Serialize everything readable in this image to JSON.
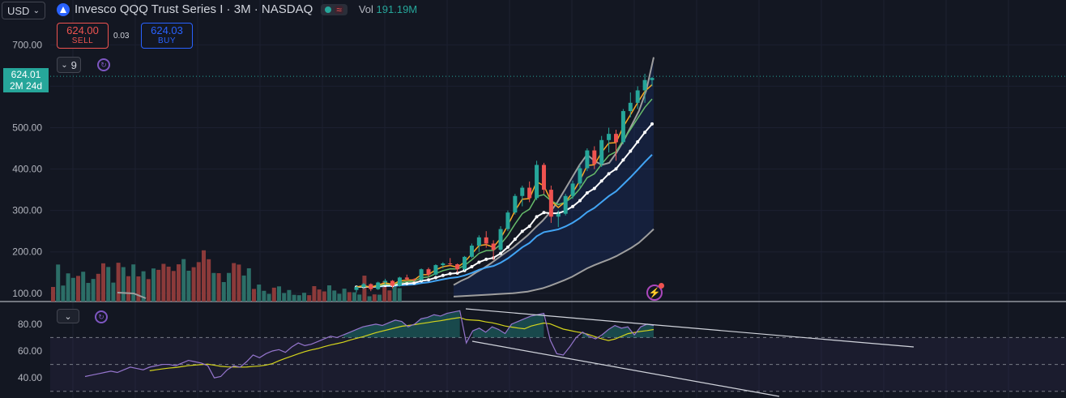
{
  "header": {
    "currency": "USD",
    "symbol_title": "Invesco QQQ Trust Series I · 3M · NASDAQ",
    "volume_label": "Vol",
    "volume_value": "191.19M",
    "status_icon": "market-open-dot",
    "wave_icon": "≈"
  },
  "trade": {
    "sell_price": "624.00",
    "sell_label": "SELL",
    "spread": "0.03",
    "buy_price": "624.03",
    "buy_label": "BUY"
  },
  "indicators": {
    "count": "9"
  },
  "price_tag": {
    "price": "624.01",
    "countdown": "2M 24d"
  },
  "colors": {
    "up": "#26a69a",
    "down": "#ef5350",
    "background": "#131722",
    "grid": "#1f2430",
    "ema_fast": "#f9a825",
    "ema_mid": "#66bb6a",
    "ema_white": "#ffffff",
    "ema_blue": "#42a5f5",
    "band": "#9e9e9e",
    "rsi": "#9575cd",
    "rsi_ma": "#d4d41c"
  },
  "chart_data": [
    {
      "type": "candlestick",
      "title": "Invesco QQQ Trust Series I · 3M · NASDAQ",
      "y_ticks": [
        "700.00",
        "600.00",
        "500.00",
        "400.00",
        "300.00",
        "200.00",
        "100.00"
      ],
      "ylim": [
        80,
        730
      ],
      "last_price": 624.01,
      "candles_ohlc": [
        [
          108,
          118,
          102,
          115
        ],
        [
          115,
          125,
          110,
          122
        ],
        [
          122,
          124,
          105,
          110
        ],
        [
          110,
          128,
          108,
          126
        ],
        [
          126,
          135,
          120,
          130
        ],
        [
          130,
          132,
          112,
          118
        ],
        [
          118,
          140,
          116,
          138
        ],
        [
          138,
          145,
          130,
          134
        ],
        [
          134,
          136,
          128,
          132
        ],
        [
          132,
          160,
          130,
          158
        ],
        [
          158,
          162,
          140,
          145
        ],
        [
          145,
          170,
          143,
          168
        ],
        [
          168,
          175,
          160,
          172
        ],
        [
          172,
          185,
          165,
          170
        ],
        [
          170,
          172,
          150,
          158
        ],
        [
          158,
          190,
          155,
          188
        ],
        [
          188,
          220,
          185,
          215
        ],
        [
          215,
          240,
          200,
          235
        ],
        [
          235,
          250,
          210,
          220
        ],
        [
          220,
          228,
          180,
          205
        ],
        [
          205,
          262,
          200,
          255
        ],
        [
          255,
          300,
          250,
          295
        ],
        [
          295,
          340,
          290,
          335
        ],
        [
          335,
          360,
          310,
          355
        ],
        [
          355,
          370,
          320,
          330
        ],
        [
          330,
          420,
          325,
          410
        ],
        [
          410,
          415,
          340,
          350
        ],
        [
          350,
          360,
          270,
          285
        ],
        [
          285,
          300,
          260,
          292
        ],
        [
          292,
          340,
          288,
          335
        ],
        [
          335,
          372,
          328,
          365
        ],
        [
          365,
          410,
          355,
          402
        ],
        [
          402,
          450,
          395,
          445
        ],
        [
          445,
          455,
          400,
          412
        ],
        [
          412,
          480,
          405,
          470
        ],
        [
          470,
          500,
          440,
          485
        ],
        [
          485,
          495,
          420,
          465
        ],
        [
          465,
          545,
          460,
          540
        ],
        [
          540,
          585,
          525,
          560
        ],
        [
          560,
          600,
          545,
          590
        ],
        [
          590,
          630,
          560,
          615
        ],
        [
          615,
          622,
          600,
          620
        ]
      ],
      "band_upper": [
        120,
        130,
        138,
        150,
        160,
        172,
        185,
        198,
        210,
        225,
        240,
        258,
        275,
        295,
        320,
        350,
        380,
        410,
        435,
        420,
        410,
        415,
        440,
        470,
        505,
        540,
        590,
        670
      ],
      "band_lower": [
        92,
        93,
        94,
        95,
        96,
        97,
        98,
        99,
        100,
        102,
        104,
        108,
        112,
        118,
        125,
        132,
        140,
        150,
        160,
        168,
        175,
        182,
        190,
        200,
        210,
        222,
        238,
        255
      ],
      "rsi": {
        "y_ticks": [
          "80.00",
          "60.00",
          "40.00"
        ],
        "ylim": [
          25,
          95
        ],
        "overbought": 70,
        "middle": 50,
        "oversold": 30,
        "series_values": [
          41,
          42,
          43,
          44,
          45,
          44,
          46,
          48,
          47,
          46,
          48,
          49,
          50,
          50,
          49,
          51,
          53,
          52,
          51,
          49,
          40,
          41,
          46,
          49,
          48,
          52,
          57,
          55,
          58,
          60,
          61,
          59,
          63,
          66,
          64,
          65,
          67,
          69,
          71,
          70,
          72,
          74,
          76,
          78,
          79,
          80,
          79,
          81,
          83,
          82,
          78,
          80,
          84,
          85,
          87,
          86,
          88,
          89,
          90,
          66,
          75,
          77,
          74,
          78,
          76,
          73,
          80,
          82,
          84,
          86,
          87,
          88,
          68,
          58,
          57,
          63,
          70,
          74,
          71,
          69,
          72,
          76,
          79,
          77,
          78,
          72,
          78,
          80,
          79
        ]
      }
    }
  ]
}
